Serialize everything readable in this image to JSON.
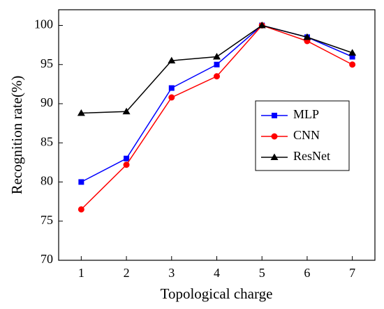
{
  "chart_data": {
    "type": "line",
    "x_label": "Topological charge",
    "y_label": "Recognition rate(%)",
    "x": [
      1,
      2,
      3,
      4,
      5,
      6,
      7
    ],
    "series": [
      {
        "name": "MLP",
        "color": "#0000ff",
        "marker": "square",
        "values": [
          80,
          83,
          92,
          95,
          100,
          98.5,
          96
        ]
      },
      {
        "name": "CNN",
        "color": "#ff0000",
        "marker": "circle",
        "values": [
          76.5,
          82.2,
          90.8,
          93.5,
          100,
          98,
          95
        ]
      },
      {
        "name": "ResNet",
        "color": "#000000",
        "marker": "triangle",
        "values": [
          88.8,
          89,
          95.5,
          96,
          100,
          98.5,
          96.5
        ]
      }
    ],
    "xlim": [
      0.5,
      7.5
    ],
    "xticks": [
      1,
      2,
      3,
      4,
      5,
      6,
      7
    ],
    "ylim": [
      70,
      102
    ],
    "yticks": [
      70,
      75,
      80,
      85,
      90,
      95,
      100
    ],
    "grid": false
  }
}
